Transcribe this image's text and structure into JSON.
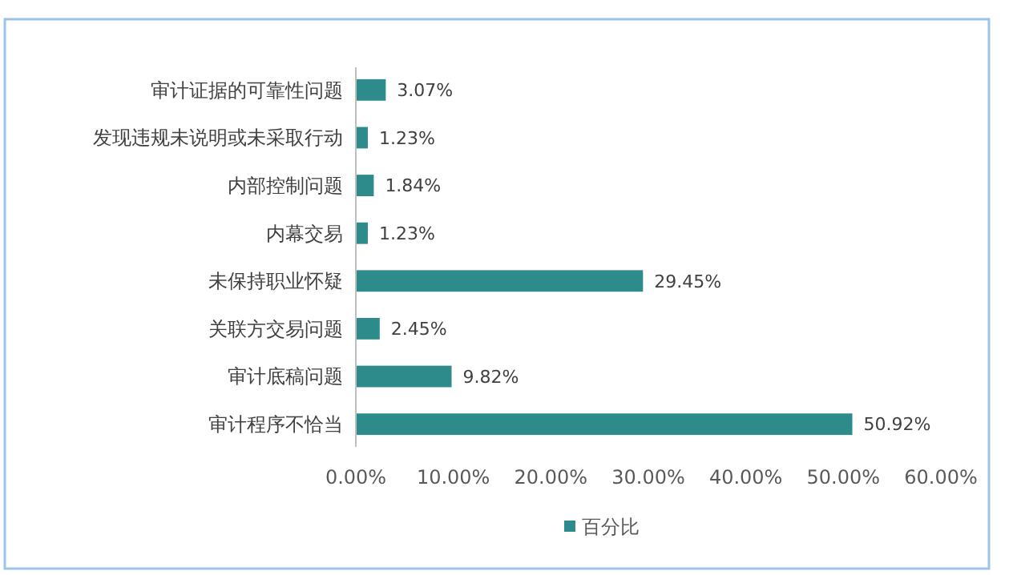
{
  "chart_data": {
    "type": "bar",
    "orientation": "horizontal",
    "categories": [
      "审计证据的可靠性问题",
      "发现违规未说明或未采取行动",
      "内部控制问题",
      "内幕交易",
      "未保持职业怀疑",
      "关联方交易问题",
      "审计底稿问题",
      "审计程序不恰当"
    ],
    "series": [
      {
        "name": "百分比",
        "color": "#2e8b8c",
        "values": [
          3.07,
          1.23,
          1.84,
          1.23,
          29.45,
          2.45,
          9.82,
          50.92
        ],
        "value_labels": [
          "3.07%",
          "1.23%",
          "1.84%",
          "1.23%",
          "29.45%",
          "2.45%",
          "9.82%",
          "50.92%"
        ]
      }
    ],
    "xlim": [
      0,
      60
    ],
    "xticks": [
      {
        "value": 0,
        "label": "0.00%"
      },
      {
        "value": 10,
        "label": "10.00%"
      },
      {
        "value": 20,
        "label": "20.00%"
      },
      {
        "value": 30,
        "label": "30.00%"
      },
      {
        "value": 40,
        "label": "40.00%"
      },
      {
        "value": 50,
        "label": "50.00%"
      },
      {
        "value": 60,
        "label": "60.00%"
      }
    ],
    "grid": false,
    "legend": "bottom"
  }
}
